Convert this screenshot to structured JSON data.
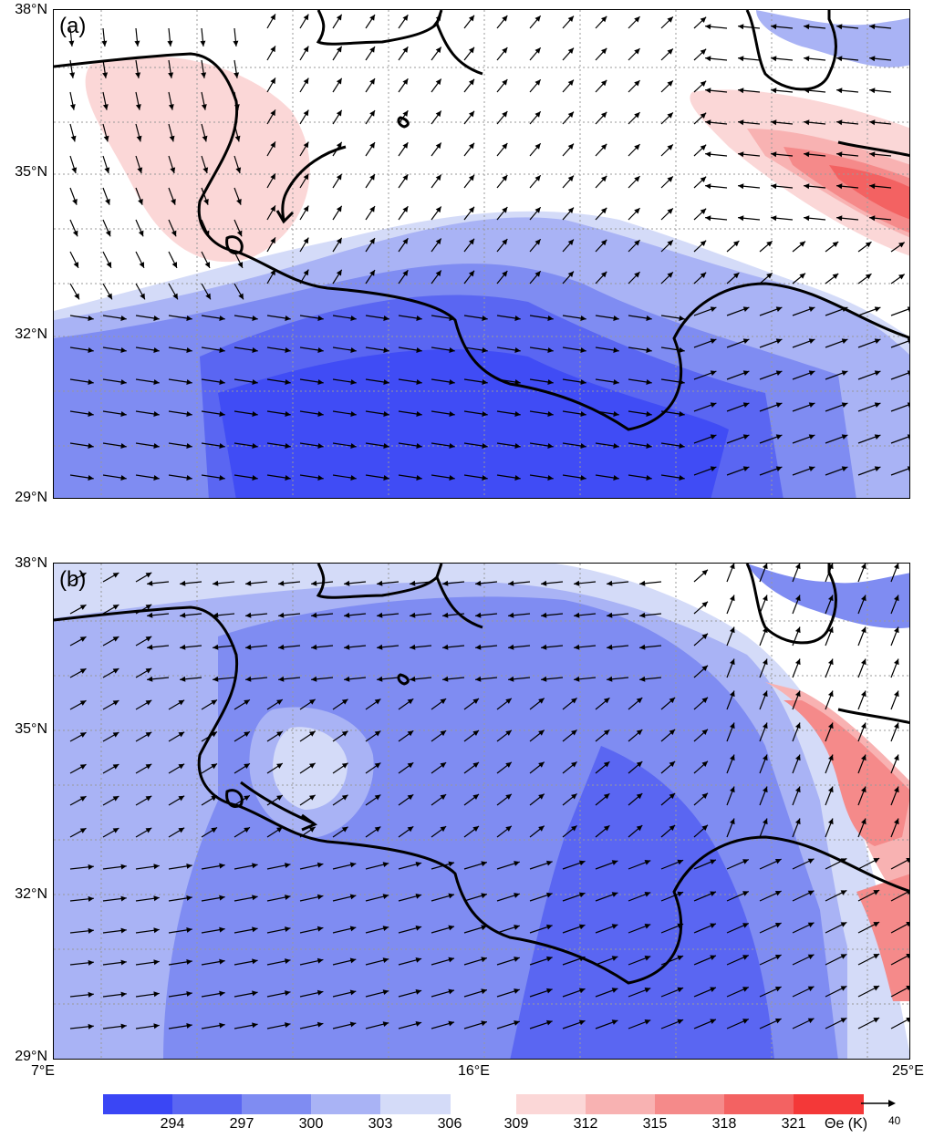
{
  "panels": [
    {
      "label": "(a)"
    },
    {
      "label": "(b)"
    }
  ],
  "lat_labels": [
    "38°N",
    "35°N",
    "32°N",
    "29°N"
  ],
  "lon_labels": [
    "7°E",
    "16°E",
    "25°E"
  ],
  "colorbar": {
    "ticks": [
      "294",
      "297",
      "300",
      "303",
      "306",
      "309",
      "312",
      "315",
      "318",
      "321"
    ],
    "unit": "Θe (K)",
    "colors_blue": [
      "#3a46f5",
      "#5a66f2",
      "#7f8cf2",
      "#a9b3f5",
      "#d4dbf8"
    ],
    "colors_red": [
      "#fbd7d7",
      "#f8b2b2",
      "#f58a8a",
      "#f36262",
      "#f43838"
    ]
  },
  "reference_vector": {
    "value": "40"
  },
  "map": {
    "lon_range": [
      7,
      25
    ],
    "lat_range": [
      29,
      38
    ]
  }
}
